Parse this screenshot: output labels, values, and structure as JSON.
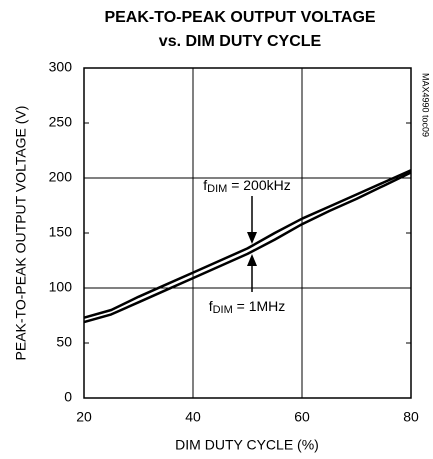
{
  "chart_data": {
    "type": "line",
    "title": [
      "PEAK-TO-PEAK OUTPUT VOLTAGE",
      "vs. DIM DUTY CYCLE"
    ],
    "xlabel": "DIM DUTY CYCLE (%)",
    "ylabel": "PEAK-TO-PEAK OUTPUT VOLTAGE (V)",
    "side_note": "MAX4990 toc09",
    "xlim": [
      20,
      80
    ],
    "xticks": [
      20,
      40,
      60,
      80
    ],
    "xgrid": [
      40,
      60
    ],
    "ylim": [
      0,
      300
    ],
    "yticks": [
      0,
      50,
      100,
      150,
      200,
      250,
      300
    ],
    "ygrid": [
      100,
      200
    ],
    "x": [
      20,
      25,
      30,
      35,
      40,
      45,
      50,
      55,
      60,
      65,
      70,
      75,
      80
    ],
    "series": [
      {
        "name": "200kHz",
        "color": "#000000",
        "values": [
          73,
          80,
          92,
          103,
          114,
          125,
          136,
          150,
          163,
          174,
          185,
          196,
          207
        ]
      },
      {
        "name": "1MHz",
        "color": "#000000",
        "values": [
          69,
          76,
          87,
          98,
          109,
          120,
          131,
          144,
          158,
          170,
          181,
          193,
          205
        ]
      }
    ],
    "annotations": [
      {
        "text": "f",
        "sub": "DIM",
        "rest": " = 200kHz"
      },
      {
        "text": "f",
        "sub": "DIM",
        "rest": " = 1MHz"
      }
    ]
  }
}
